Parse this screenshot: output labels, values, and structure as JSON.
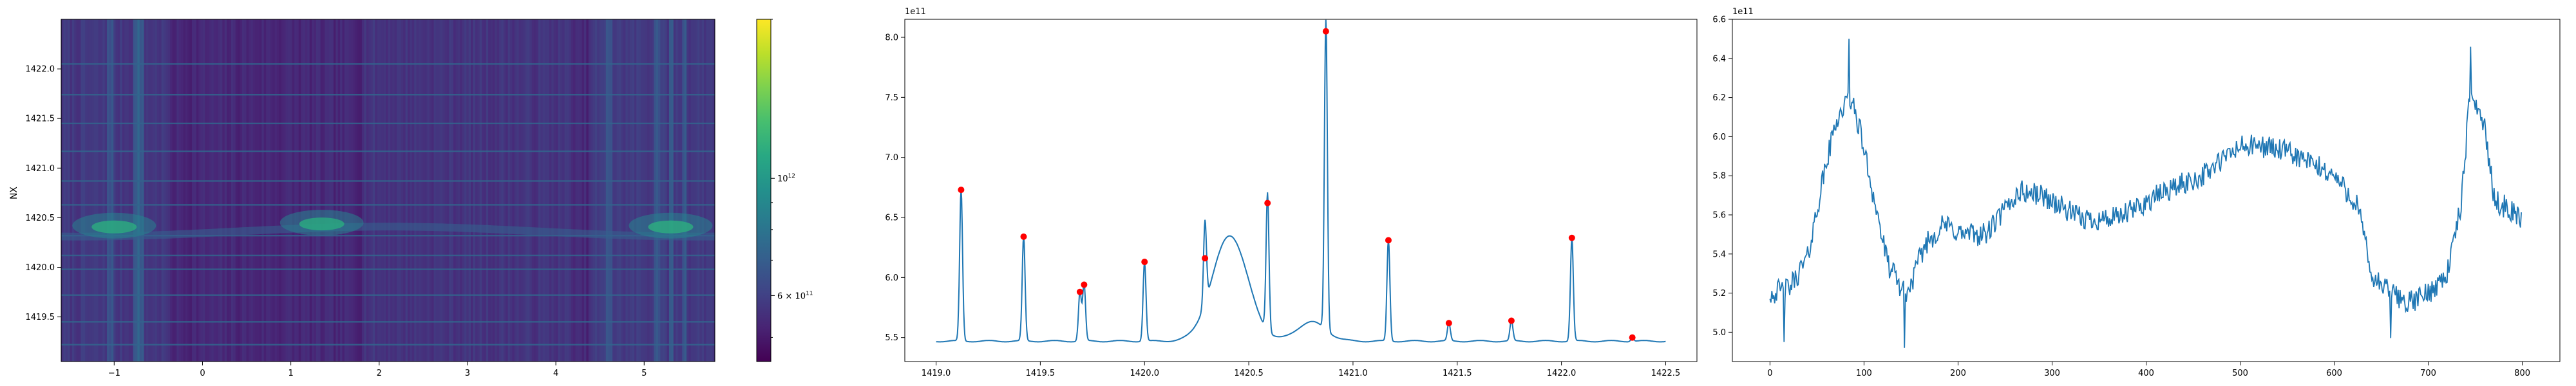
{
  "chart_data": [
    {
      "type": "heatmap",
      "ylabel": "NX",
      "xlim": [
        -1.6,
        5.8
      ],
      "ylim": [
        1419.05,
        1422.5
      ],
      "xticks": [
        -1,
        0,
        1,
        2,
        3,
        4,
        5
      ],
      "xtick_labels": [
        "−1",
        "0",
        "1",
        "2",
        "3",
        "4",
        "5"
      ],
      "yticks": [
        1419.5,
        1420.0,
        1420.5,
        1421.0,
        1421.5,
        1422.0
      ],
      "ytick_labels": [
        "1419.5",
        "1420.0",
        "1420.5",
        "1421.0",
        "1421.5",
        "1422.0"
      ],
      "colormap": "viridis",
      "colorbar": {
        "scale": "log",
        "min": 450000000000.0,
        "max": 2000000000000.0,
        "ticks": [
          {
            "value": 1000000000000.0,
            "base": "10",
            "exp": "12",
            "prefix": ""
          },
          {
            "value": 600000000000.0,
            "base": "10",
            "exp": "11",
            "prefix": "6 × "
          }
        ]
      },
      "horizontal_lines_y": [
        1419.22,
        1419.45,
        1419.72,
        1419.98,
        1420.12,
        1420.32,
        1420.63,
        1420.87,
        1421.17,
        1421.45,
        1421.74,
        1422.05
      ],
      "ridges": [
        {
          "x_center": -1.0,
          "y_center": 1420.42,
          "strength": 0.7
        },
        {
          "x_center": 1.35,
          "y_center": 1420.45,
          "strength": 0.65
        },
        {
          "x_center": 5.3,
          "y_center": 1420.42,
          "strength": 0.75
        }
      ],
      "bright_columns_x": [
        -1.05,
        -0.75,
        -0.7,
        4.6,
        5.15,
        5.3,
        5.45
      ]
    },
    {
      "type": "line",
      "offset_label": "1e11",
      "xlim": [
        1418.85,
        1422.65
      ],
      "ylim": [
        5.3,
        8.15
      ],
      "xticks": [
        1419.0,
        1419.5,
        1420.0,
        1420.5,
        1421.0,
        1421.5,
        1422.0,
        1422.5
      ],
      "xtick_labels": [
        "1419.0",
        "1419.5",
        "1420.0",
        "1420.5",
        "1421.0",
        "1421.5",
        "1422.0",
        "1422.5"
      ],
      "yticks": [
        5.5,
        6.0,
        6.5,
        7.0,
        7.5,
        8.0
      ],
      "ytick_labels": [
        "5.5",
        "6.0",
        "6.5",
        "7.0",
        "7.5",
        "8.0"
      ],
      "line_color": "#1f77b4",
      "marker_color": "#ff0000",
      "baseline": 5.47,
      "x_start": 1419.0,
      "x_end": 1422.5,
      "hump": {
        "center": 1420.41,
        "height": 6.35,
        "width": 0.085
      },
      "shoulder": {
        "center": 1420.8,
        "height": 5.63,
        "width": 0.07
      },
      "peaks": [
        {
          "x": 1419.12,
          "y": 6.73
        },
        {
          "x": 1419.42,
          "y": 6.34
        },
        {
          "x": 1419.69,
          "y": 5.88
        },
        {
          "x": 1419.71,
          "y": 5.94
        },
        {
          "x": 1420.0,
          "y": 6.13
        },
        {
          "x": 1420.29,
          "y": 6.16
        },
        {
          "x": 1420.59,
          "y": 6.62
        },
        {
          "x": 1420.87,
          "y": 8.05
        },
        {
          "x": 1421.17,
          "y": 6.31
        },
        {
          "x": 1421.46,
          "y": 5.62
        },
        {
          "x": 1421.76,
          "y": 5.64
        },
        {
          "x": 1422.05,
          "y": 6.33
        },
        {
          "x": 1422.34,
          "y": 5.5
        }
      ]
    },
    {
      "type": "line",
      "offset_label": "1e11",
      "xlim": [
        -40,
        840
      ],
      "ylim": [
        4.85,
        6.6
      ],
      "xticks": [
        0,
        100,
        200,
        300,
        400,
        500,
        600,
        700,
        800
      ],
      "xtick_labels": [
        "0",
        "100",
        "200",
        "300",
        "400",
        "500",
        "600",
        "700",
        "800"
      ],
      "yticks": [
        5.0,
        5.2,
        5.4,
        5.6,
        5.8,
        6.0,
        6.2,
        6.4,
        6.6
      ],
      "ytick_labels": [
        "5.0",
        "5.2",
        "5.4",
        "5.6",
        "5.8",
        "6.0",
        "6.2",
        "6.4",
        "6.6"
      ],
      "line_color": "#1f77b4",
      "n_points": 800,
      "noise_amplitude": 0.06,
      "trend": [
        [
          0,
          5.2
        ],
        [
          20,
          5.22
        ],
        [
          40,
          5.38
        ],
        [
          55,
          5.75
        ],
        [
          70,
          6.08
        ],
        [
          85,
          6.2
        ],
        [
          95,
          6.05
        ],
        [
          110,
          5.7
        ],
        [
          125,
          5.35
        ],
        [
          145,
          5.18
        ],
        [
          165,
          5.45
        ],
        [
          185,
          5.55
        ],
        [
          205,
          5.5
        ],
        [
          230,
          5.5
        ],
        [
          265,
          5.72
        ],
        [
          290,
          5.7
        ],
        [
          330,
          5.58
        ],
        [
          370,
          5.58
        ],
        [
          420,
          5.72
        ],
        [
          460,
          5.8
        ],
        [
          500,
          5.95
        ],
        [
          530,
          5.95
        ],
        [
          560,
          5.9
        ],
        [
          600,
          5.8
        ],
        [
          625,
          5.65
        ],
        [
          640,
          5.28
        ],
        [
          660,
          5.2
        ],
        [
          680,
          5.15
        ],
        [
          700,
          5.2
        ],
        [
          720,
          5.3
        ],
        [
          735,
          5.65
        ],
        [
          745,
          6.25
        ],
        [
          760,
          6.05
        ],
        [
          770,
          5.68
        ],
        [
          800,
          5.58
        ]
      ],
      "spikes": [
        {
          "x": 84,
          "y": 6.5
        },
        {
          "x": 143,
          "y": 4.92
        },
        {
          "x": 660,
          "y": 4.97
        },
        {
          "x": 745,
          "y": 6.46
        },
        {
          "x": 15,
          "y": 4.95
        }
      ]
    }
  ]
}
